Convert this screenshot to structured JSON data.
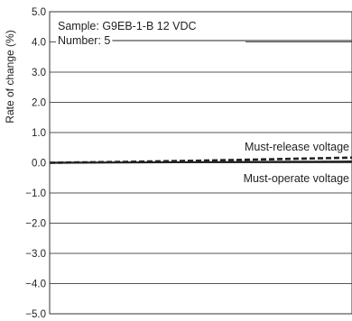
{
  "chart_data": {
    "type": "line",
    "title": "",
    "xlabel": "",
    "ylabel": "Rate of change (%)",
    "ylim": [
      -5.0,
      5.0
    ],
    "yticks": [
      "5.0",
      "4.0",
      "3.0",
      "2.0",
      "1.0",
      "0.0",
      "−1.0",
      "−2.0",
      "−3.0",
      "−4.0",
      "−5.0"
    ],
    "grid": "horizontal",
    "annotations": {
      "sample": "Sample: G9EB-1-B 12 VDC",
      "number": "Number: 5"
    },
    "series": [
      {
        "name": "Must-release voltage",
        "style": "dashed",
        "color": "#222222",
        "values": [
          {
            "t": 0.0,
            "y": 0.0
          },
          {
            "t": 0.25,
            "y": 0.03
          },
          {
            "t": 0.5,
            "y": 0.07
          },
          {
            "t": 0.75,
            "y": 0.12
          },
          {
            "t": 1.0,
            "y": 0.17
          }
        ]
      },
      {
        "name": "Must-operate voltage",
        "style": "solid",
        "color": "#222222",
        "values": [
          {
            "t": 0.0,
            "y": 0.0
          },
          {
            "t": 0.25,
            "y": 0.01
          },
          {
            "t": 0.5,
            "y": 0.02
          },
          {
            "t": 0.75,
            "y": 0.03
          },
          {
            "t": 1.0,
            "y": 0.04
          }
        ]
      }
    ]
  }
}
